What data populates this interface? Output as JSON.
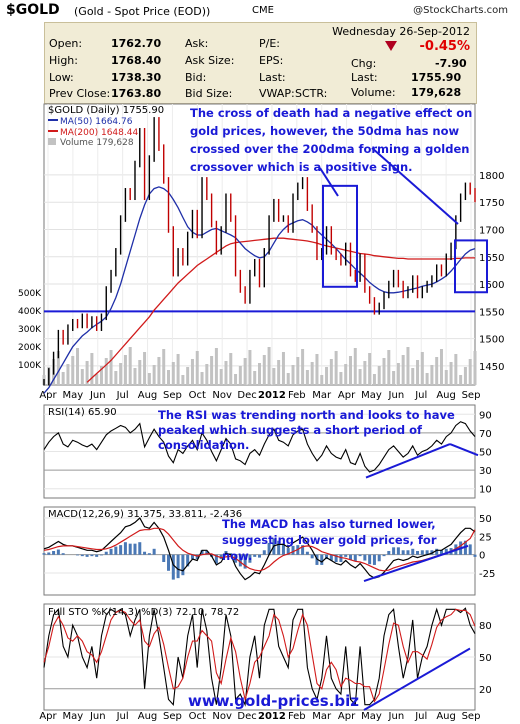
{
  "header": {
    "symbol": "$GOLD",
    "description": "(Gold - Spot Price (EOD))",
    "exchange": "CME",
    "copyright": "@StockCharts.com"
  },
  "quote": {
    "date": "Wednesday  26-Sep-2012",
    "change_pct": "-0.45%",
    "rows": [
      {
        "l1": "Open:",
        "v1": "1762.70",
        "l2": "Ask:",
        "v2": "",
        "l3": "P/E:",
        "v3": "",
        "l4": "Chg:",
        "v4": "-7.90"
      },
      {
        "l1": "High:",
        "v1": "1768.40",
        "l2": "Ask Size:",
        "v2": "",
        "l3": "EPS:",
        "v3": "",
        "l4": "Last:",
        "v4": "1755.90"
      },
      {
        "l1": "Low:",
        "v1": "1738.30",
        "l2": "Bid:",
        "v2": "",
        "l3": "Last:",
        "v3": "",
        "l4": "Volume:",
        "v4": "179,628"
      },
      {
        "l1": "Prev Close:",
        "v1": "1763.80",
        "l2": "Bid Size:",
        "v2": "",
        "l3": "VWAP:",
        "v3": "",
        "l4": "SCTR:",
        "v4": ""
      }
    ]
  },
  "colors": {
    "price": "#000000",
    "ma50": "#1f2fa8",
    "ma200": "#d11b1b",
    "annotation": "#1a1ad6",
    "volume": "#c2c2c2",
    "positive": "#2a7d2a",
    "negative": "#c00000"
  },
  "watermark": "www.gold-prices.biz",
  "chart_data": [
    {
      "type": "line",
      "title": "$GOLD (Daily) 1755.90",
      "legend": [
        "MA(50) 1664.76",
        "MA(200) 1648.44",
        "Volume 179,628"
      ],
      "x_labels": [
        "Apr",
        "May",
        "Jun",
        "Jul",
        "Aug",
        "Sep",
        "Oct",
        "Nov",
        "Dec",
        "2012",
        "Feb",
        "Mar",
        "Apr",
        "May",
        "Jun",
        "Jul",
        "Aug",
        "Sep"
      ],
      "y_ticks": [
        1450,
        1500,
        1550,
        1600,
        1650,
        1700,
        1750,
        1800
      ],
      "volume_ticks": [
        "500K",
        "400K",
        "300K",
        "200K",
        "100K"
      ],
      "ylim": [
        1415,
        1930
      ],
      "horizontal_line": 1550,
      "annotation": "The cross of death had a negative effect on gold prices, however, the 50dma has now crossed over the 200dma forming a golden crossover which is a positive sign.",
      "series": [
        {
          "name": "$GOLD",
          "values": [
            1420,
            1440,
            1470,
            1510,
            1495,
            1520,
            1530,
            1525,
            1540,
            1525,
            1535,
            1520,
            1540,
            1590,
            1620,
            1660,
            1720,
            1770,
            1760,
            1820,
            1880,
            1760,
            1830,
            1900,
            1850,
            1790,
            1700,
            1620,
            1660,
            1640,
            1690,
            1730,
            1690,
            1790,
            1760,
            1710,
            1660,
            1700,
            1760,
            1720,
            1620,
            1590,
            1570,
            1620,
            1640,
            1600,
            1660,
            1720,
            1750,
            1720,
            1720,
            1700,
            1760,
            1780,
            1790,
            1740,
            1700,
            1650,
            1660,
            1700,
            1660,
            1650,
            1640,
            1670,
            1620,
            1610,
            1650,
            1590,
            1570,
            1550,
            1560,
            1580,
            1600,
            1620,
            1600,
            1580,
            1590,
            1610,
            1580,
            1590,
            1600,
            1610,
            1630,
            1620,
            1650,
            1670,
            1720,
            1760,
            1780,
            1770,
            1756
          ]
        },
        {
          "name": "MA(50)",
          "values": [
            1400,
            1410,
            1425,
            1440,
            1455,
            1470,
            1485,
            1495,
            1505,
            1512,
            1520,
            1526,
            1532,
            1540,
            1555,
            1575,
            1600,
            1630,
            1660,
            1690,
            1720,
            1745,
            1765,
            1775,
            1778,
            1775,
            1768,
            1755,
            1740,
            1722,
            1705,
            1695,
            1690,
            1690,
            1695,
            1700,
            1702,
            1698,
            1694,
            1690,
            1685,
            1675,
            1665,
            1658,
            1652,
            1648,
            1650,
            1660,
            1675,
            1690,
            1700,
            1708,
            1712,
            1716,
            1718,
            1714,
            1708,
            1698,
            1690,
            1682,
            1674,
            1665,
            1655,
            1645,
            1637,
            1628,
            1620,
            1612,
            1603,
            1596,
            1590,
            1586,
            1584,
            1584,
            1585,
            1587,
            1589,
            1591,
            1593,
            1596,
            1598,
            1600,
            1604,
            1609,
            1615,
            1624,
            1634,
            1645,
            1655,
            1662,
            1665
          ]
        },
        {
          "name": "MA(200)",
          "values": [
            null,
            null,
            null,
            null,
            null,
            null,
            null,
            null,
            null,
            1420,
            1428,
            1436,
            1444,
            1452,
            1460,
            1470,
            1480,
            1490,
            1500,
            1510,
            1520,
            1530,
            1540,
            1552,
            1562,
            1572,
            1582,
            1592,
            1602,
            1610,
            1618,
            1626,
            1634,
            1640,
            1646,
            1652,
            1658,
            1664,
            1670,
            1674,
            1676,
            1677,
            1678,
            1679,
            1680,
            1681,
            1682,
            1683,
            1684,
            1684,
            1684,
            1683,
            1682,
            1681,
            1680,
            1679,
            1677,
            1675,
            1672,
            1670,
            1668,
            1666,
            1664,
            1662,
            1660,
            1658,
            1656,
            1655,
            1654,
            1652,
            1651,
            1650,
            1649,
            1648,
            1647,
            1647,
            1646,
            1646,
            1646,
            1646,
            1646,
            1646,
            1646,
            1646,
            1646,
            1646,
            1647,
            1647,
            1648,
            1648,
            1648
          ]
        }
      ]
    },
    {
      "type": "line",
      "title": "RSI(14) 65.90",
      "annotation": "The RSI was trending north and looks to have peaked which suggests a short period of consolidation.",
      "y_ticks": [
        90,
        70,
        50,
        30,
        10
      ],
      "ylim": [
        0,
        100
      ],
      "series": [
        {
          "name": "RSI(14)",
          "values": [
            52,
            60,
            66,
            70,
            58,
            55,
            62,
            60,
            57,
            55,
            58,
            52,
            60,
            68,
            72,
            75,
            78,
            76,
            70,
            74,
            80,
            55,
            65,
            74,
            66,
            60,
            45,
            38,
            52,
            48,
            56,
            62,
            52,
            70,
            62,
            50,
            40,
            52,
            64,
            58,
            42,
            40,
            36,
            48,
            52,
            46,
            58,
            68,
            74,
            62,
            60,
            56,
            68,
            72,
            74,
            58,
            48,
            40,
            46,
            56,
            48,
            44,
            42,
            52,
            38,
            36,
            48,
            34,
            28,
            30,
            36,
            44,
            52,
            56,
            50,
            44,
            48,
            56,
            46,
            50,
            52,
            56,
            62,
            58,
            66,
            70,
            78,
            82,
            80,
            72,
            66
          ]
        }
      ]
    },
    {
      "type": "line",
      "title": "MACD(12,26,9) 31.375, 33.811, -2.436",
      "annotation": "The MACD has also turned lower, suggesting lower gold prices, for now.",
      "y_ticks": [
        50,
        25,
        0,
        -25
      ],
      "ylim": [
        -55,
        65
      ],
      "series": [
        {
          "name": "MACD",
          "values": [
            8,
            10,
            14,
            18,
            14,
            12,
            12,
            10,
            8,
            6,
            6,
            4,
            6,
            12,
            18,
            24,
            30,
            38,
            40,
            44,
            50,
            38,
            36,
            44,
            36,
            24,
            6,
            -14,
            -20,
            -22,
            -14,
            -6,
            -8,
            6,
            6,
            -2,
            -14,
            -10,
            2,
            0,
            -16,
            -26,
            -34,
            -30,
            -24,
            -26,
            -14,
            0,
            12,
            14,
            14,
            10,
            16,
            20,
            24,
            16,
            6,
            -6,
            -10,
            -4,
            -8,
            -12,
            -14,
            -8,
            -14,
            -18,
            -12,
            -20,
            -28,
            -32,
            -30,
            -24,
            -16,
            -8,
            -6,
            -8,
            -6,
            -2,
            -4,
            -2,
            0,
            2,
            6,
            6,
            10,
            14,
            22,
            30,
            36,
            36,
            31
          ]
        },
        {
          "name": "Signal",
          "values": [
            6,
            7,
            9,
            11,
            12,
            12,
            12,
            11,
            10,
            9,
            8,
            7,
            7,
            8,
            10,
            13,
            17,
            21,
            25,
            29,
            33,
            34,
            34,
            36,
            36,
            34,
            28,
            20,
            12,
            6,
            2,
            0,
            -2,
            0,
            1,
            1,
            -2,
            -4,
            -3,
            -2,
            -5,
            -10,
            -15,
            -19,
            -21,
            -22,
            -20,
            -16,
            -10,
            -5,
            -1,
            1,
            4,
            7,
            11,
            12,
            11,
            8,
            4,
            2,
            0,
            -2,
            -4,
            -5,
            -7,
            -9,
            -10,
            -12,
            -15,
            -18,
            -21,
            -22,
            -21,
            -18,
            -16,
            -14,
            -12,
            -10,
            -9,
            -8,
            -6,
            -4,
            -2,
            0,
            2,
            5,
            8,
            12,
            17,
            22,
            34
          ]
        }
      ]
    },
    {
      "type": "line",
      "title": "Full STO %K(14,3) %D(3) 72.10, 78.72",
      "y_ticks": [
        80,
        50,
        20
      ],
      "ylim": [
        0,
        100
      ],
      "series": [
        {
          "name": "%K",
          "values": [
            40,
            70,
            90,
            95,
            60,
            50,
            80,
            70,
            50,
            40,
            60,
            30,
            70,
            90,
            95,
            92,
            95,
            90,
            70,
            85,
            95,
            20,
            70,
            95,
            70,
            40,
            10,
            5,
            50,
            30,
            70,
            90,
            40,
            95,
            75,
            30,
            5,
            40,
            90,
            70,
            10,
            15,
            5,
            50,
            70,
            30,
            80,
            95,
            95,
            60,
            50,
            40,
            85,
            95,
            95,
            40,
            20,
            10,
            30,
            70,
            30,
            20,
            15,
            60,
            10,
            5,
            60,
            5,
            5,
            10,
            30,
            70,
            90,
            95,
            60,
            30,
            50,
            85,
            30,
            50,
            60,
            80,
            95,
            80,
            95,
            95,
            95,
            92,
            96,
            80,
            72
          ]
        },
        {
          "name": "%D",
          "values": [
            45,
            60,
            80,
            88,
            80,
            68,
            65,
            70,
            65,
            55,
            52,
            45,
            55,
            70,
            85,
            92,
            94,
            92,
            85,
            80,
            85,
            65,
            60,
            72,
            78,
            62,
            40,
            20,
            22,
            30,
            50,
            65,
            65,
            75,
            70,
            65,
            35,
            25,
            48,
            68,
            55,
            30,
            10,
            25,
            45,
            50,
            60,
            70,
            90,
            85,
            70,
            50,
            58,
            75,
            90,
            80,
            52,
            25,
            20,
            38,
            45,
            38,
            22,
            30,
            28,
            25,
            25,
            22,
            22,
            8,
            15,
            38,
            62,
            82,
            80,
            60,
            45,
            55,
            55,
            52,
            48,
            62,
            78,
            85,
            88,
            90,
            95,
            94,
            94,
            90,
            79
          ]
        }
      ]
    }
  ]
}
